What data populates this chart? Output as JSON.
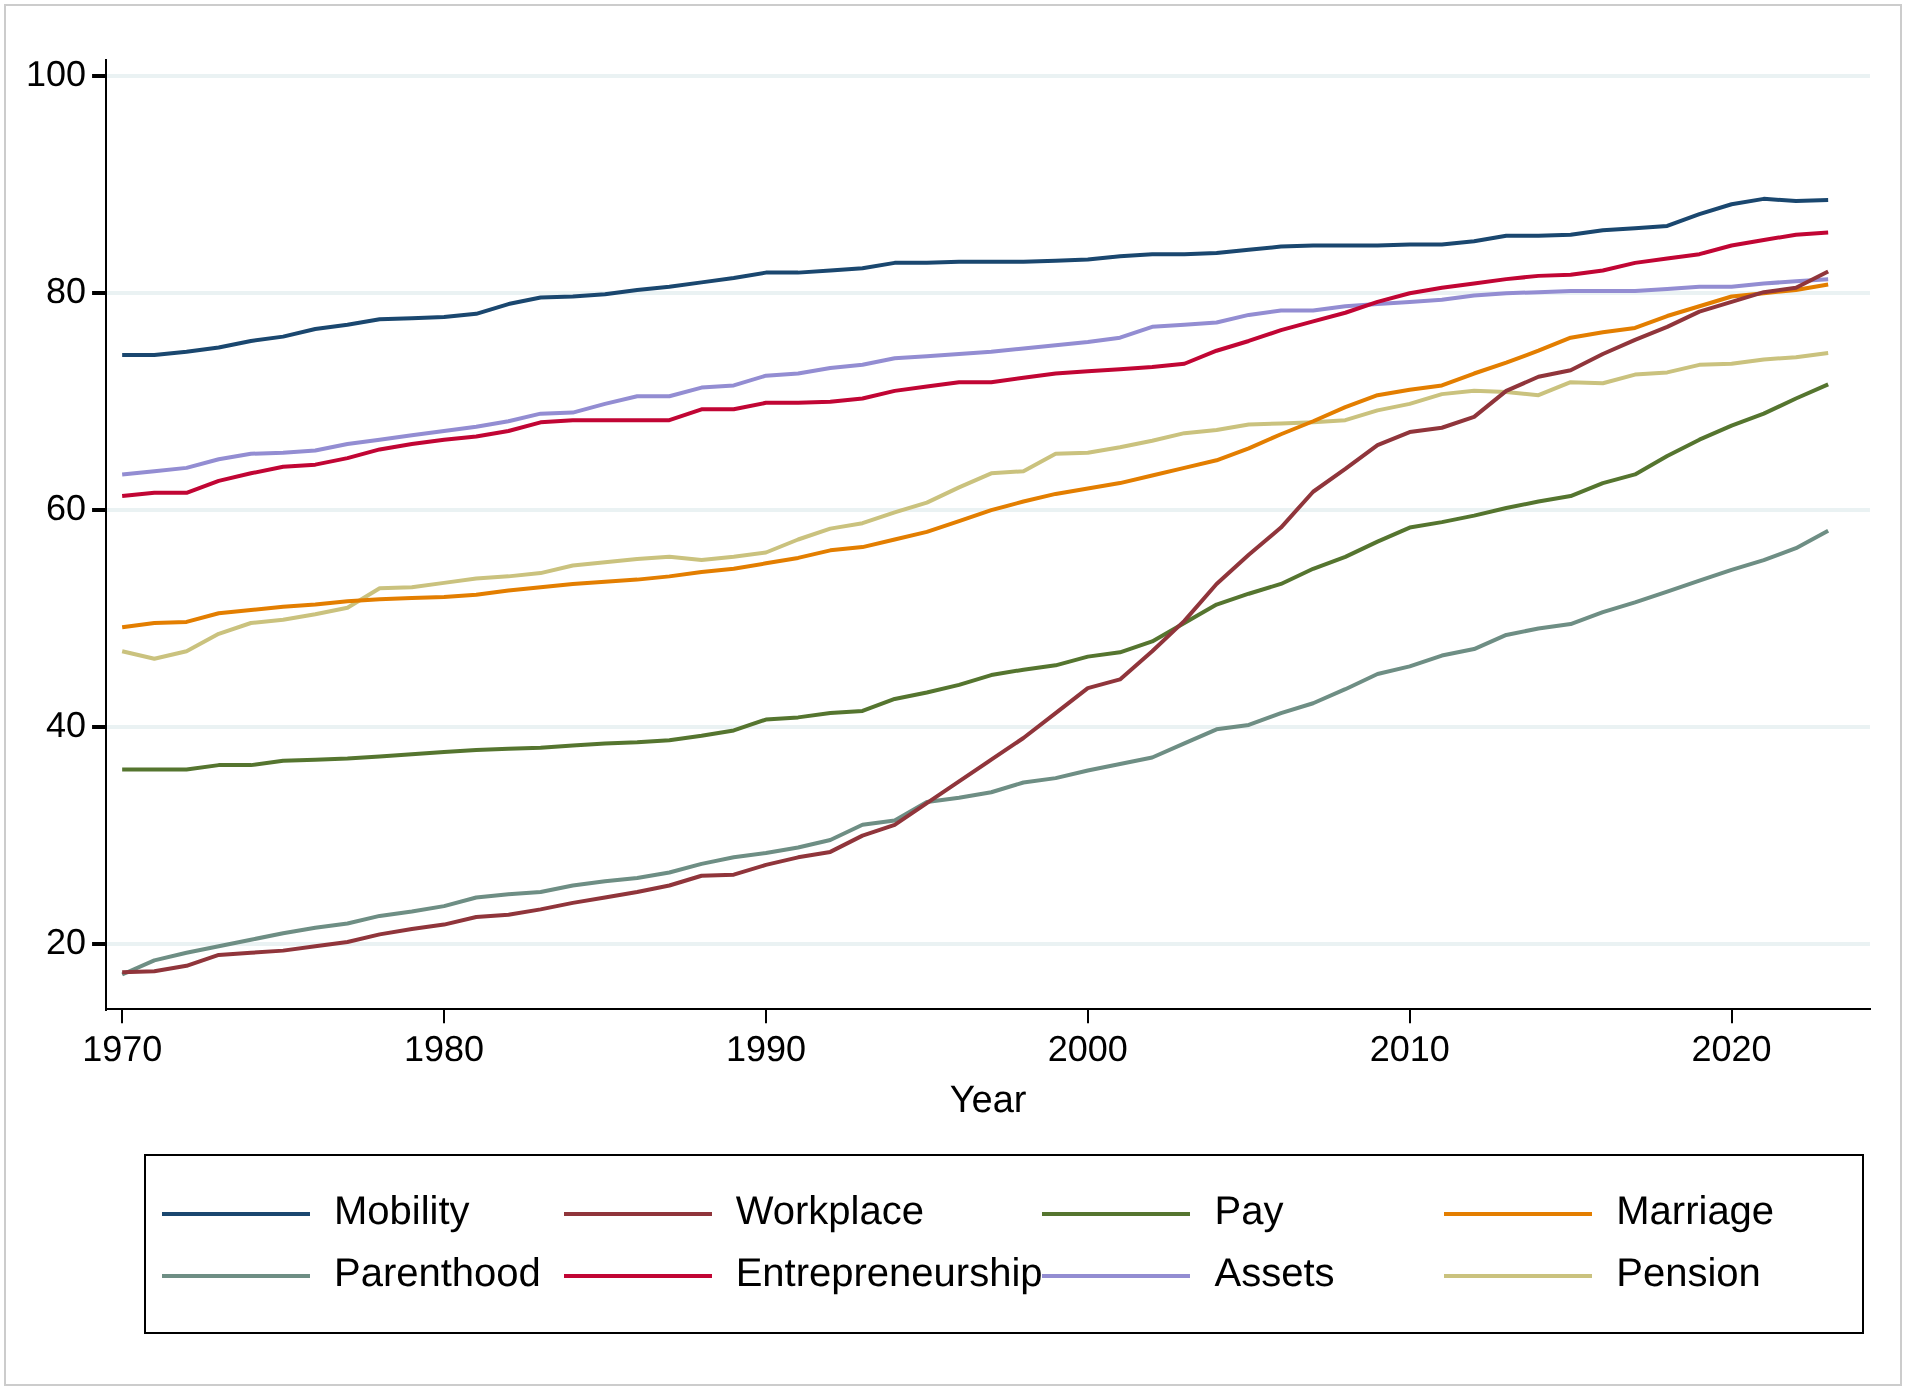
{
  "chart_data": {
    "type": "line",
    "xlabel": "Year",
    "x": [
      1970,
      1971,
      1972,
      1973,
      1974,
      1975,
      1976,
      1977,
      1978,
      1979,
      1980,
      1981,
      1982,
      1983,
      1984,
      1985,
      1986,
      1987,
      1988,
      1989,
      1990,
      1991,
      1992,
      1993,
      1994,
      1995,
      1996,
      1997,
      1998,
      1999,
      2000,
      2001,
      2002,
      2003,
      2004,
      2005,
      2006,
      2007,
      2008,
      2009,
      2010,
      2011,
      2012,
      2013,
      2014,
      2015,
      2016,
      2017,
      2018,
      2019,
      2020,
      2021,
      2022,
      2023
    ],
    "xlim": [
      1969.5,
      2024.3
    ],
    "xticks": [
      1970,
      1980,
      1990,
      2000,
      2010,
      2020
    ],
    "ylim": [
      14,
      101.5
    ],
    "yticks": [
      20,
      40,
      60,
      80,
      100
    ],
    "grid": "y",
    "legend": "bottom",
    "marker": "none",
    "line_style": "solid",
    "series": [
      {
        "name": "Mobility",
        "color": "#1a476f",
        "values": [
          74.3,
          74.3,
          74.6,
          75.0,
          75.6,
          76.0,
          76.7,
          77.1,
          77.6,
          77.7,
          77.8,
          78.1,
          79.0,
          79.6,
          79.7,
          79.9,
          80.3,
          80.6,
          81.0,
          81.4,
          81.9,
          81.9,
          82.1,
          82.3,
          82.8,
          82.8,
          82.9,
          82.9,
          82.9,
          83.0,
          83.1,
          83.4,
          83.6,
          83.6,
          83.7,
          84.0,
          84.3,
          84.4,
          84.4,
          84.4,
          84.5,
          84.5,
          84.8,
          85.3,
          85.3,
          85.4,
          85.8,
          86.0,
          86.2,
          87.3,
          88.2,
          88.7,
          88.5,
          88.6
        ]
      },
      {
        "name": "Workplace",
        "color": "#90353b",
        "values": [
          17.4,
          17.5,
          18.0,
          19.0,
          19.2,
          19.4,
          19.8,
          20.2,
          20.9,
          21.4,
          21.8,
          22.5,
          22.7,
          23.2,
          23.8,
          24.3,
          24.8,
          25.4,
          26.3,
          26.4,
          27.3,
          28.0,
          28.5,
          30.0,
          31.0,
          33.0,
          35.0,
          37.0,
          39.0,
          41.3,
          43.6,
          44.4,
          47.0,
          49.8,
          53.2,
          55.9,
          58.4,
          61.7,
          63.8,
          66.0,
          67.2,
          67.6,
          68.6,
          71.0,
          72.3,
          72.9,
          74.4,
          75.7,
          76.9,
          78.3,
          79.2,
          80.1,
          80.5,
          82.0
        ]
      },
      {
        "name": "Pay",
        "color": "#55752f",
        "values": [
          36.1,
          36.1,
          36.1,
          36.5,
          36.5,
          36.9,
          37.0,
          37.1,
          37.3,
          37.5,
          37.7,
          37.9,
          38.0,
          38.1,
          38.3,
          38.5,
          38.6,
          38.8,
          39.2,
          39.7,
          40.7,
          40.9,
          41.3,
          41.5,
          42.6,
          43.2,
          43.9,
          44.8,
          45.3,
          45.7,
          46.5,
          46.9,
          47.9,
          49.6,
          51.3,
          52.3,
          53.2,
          54.6,
          55.7,
          57.1,
          58.4,
          58.9,
          59.5,
          60.2,
          60.8,
          61.3,
          62.5,
          63.3,
          65.0,
          66.5,
          67.8,
          68.9,
          70.3,
          71.6
        ]
      },
      {
        "name": "Marriage",
        "color": "#e37e00",
        "values": [
          49.2,
          49.6,
          49.7,
          50.5,
          50.8,
          51.1,
          51.3,
          51.6,
          51.8,
          51.9,
          52.0,
          52.2,
          52.6,
          52.9,
          53.2,
          53.4,
          53.6,
          53.9,
          54.3,
          54.6,
          55.1,
          55.6,
          56.3,
          56.6,
          57.3,
          58.0,
          59.0,
          60.0,
          60.8,
          61.5,
          62.0,
          62.5,
          63.2,
          63.9,
          64.6,
          65.7,
          67.0,
          68.2,
          69.5,
          70.6,
          71.1,
          71.5,
          72.6,
          73.6,
          74.7,
          75.9,
          76.4,
          76.8,
          77.9,
          78.8,
          79.7,
          80.0,
          80.3,
          80.8
        ]
      },
      {
        "name": "Parenthood",
        "color": "#6e8e84",
        "values": [
          17.2,
          18.5,
          19.2,
          19.8,
          20.4,
          21.0,
          21.5,
          21.9,
          22.6,
          23.0,
          23.5,
          24.3,
          24.6,
          24.8,
          25.4,
          25.8,
          26.1,
          26.6,
          27.4,
          28.0,
          28.4,
          28.9,
          29.6,
          31.0,
          31.4,
          33.1,
          33.5,
          34.0,
          34.9,
          35.3,
          36.0,
          36.6,
          37.2,
          38.5,
          39.8,
          40.2,
          41.3,
          42.2,
          43.5,
          44.9,
          45.6,
          46.6,
          47.2,
          48.5,
          49.1,
          49.5,
          50.6,
          51.5,
          52.5,
          53.5,
          54.5,
          55.4,
          56.5,
          58.1
        ]
      },
      {
        "name": "Entrepreneurship",
        "color": "#c10534",
        "values": [
          61.3,
          61.6,
          61.6,
          62.7,
          63.4,
          64.0,
          64.2,
          64.8,
          65.6,
          66.1,
          66.5,
          66.8,
          67.3,
          68.1,
          68.3,
          68.3,
          68.3,
          68.3,
          69.3,
          69.3,
          69.9,
          69.9,
          70.0,
          70.3,
          71.0,
          71.4,
          71.8,
          71.8,
          72.2,
          72.6,
          72.8,
          73.0,
          73.2,
          73.5,
          74.7,
          75.6,
          76.6,
          77.4,
          78.2,
          79.2,
          80.0,
          80.5,
          80.9,
          81.3,
          81.6,
          81.7,
          82.1,
          82.8,
          83.2,
          83.6,
          84.4,
          84.9,
          85.4,
          85.6
        ]
      },
      {
        "name": "Assets",
        "color": "#938dd2",
        "values": [
          63.3,
          63.6,
          63.9,
          64.7,
          65.2,
          65.3,
          65.5,
          66.1,
          66.5,
          66.9,
          67.3,
          67.7,
          68.2,
          68.9,
          69.0,
          69.8,
          70.5,
          70.5,
          71.3,
          71.5,
          72.4,
          72.6,
          73.1,
          73.4,
          74.0,
          74.2,
          74.4,
          74.6,
          74.9,
          75.2,
          75.5,
          75.9,
          76.9,
          77.1,
          77.3,
          78.0,
          78.4,
          78.4,
          78.8,
          79.0,
          79.2,
          79.4,
          79.8,
          80.0,
          80.1,
          80.2,
          80.2,
          80.2,
          80.4,
          80.6,
          80.6,
          80.9,
          81.1,
          81.3
        ]
      },
      {
        "name": "Pension",
        "color": "#cac27e",
        "values": [
          47.0,
          46.3,
          47.0,
          48.6,
          49.6,
          49.9,
          50.4,
          51.0,
          52.8,
          52.9,
          53.3,
          53.7,
          53.9,
          54.2,
          54.9,
          55.2,
          55.5,
          55.7,
          55.4,
          55.7,
          56.1,
          57.3,
          58.3,
          58.8,
          59.8,
          60.7,
          62.1,
          63.4,
          63.6,
          65.2,
          65.3,
          65.8,
          66.4,
          67.1,
          67.4,
          67.9,
          68.0,
          68.1,
          68.3,
          69.2,
          69.8,
          70.7,
          71.0,
          70.9,
          70.6,
          71.8,
          71.7,
          72.5,
          72.7,
          73.4,
          73.5,
          73.9,
          74.1,
          74.5
        ]
      }
    ]
  }
}
